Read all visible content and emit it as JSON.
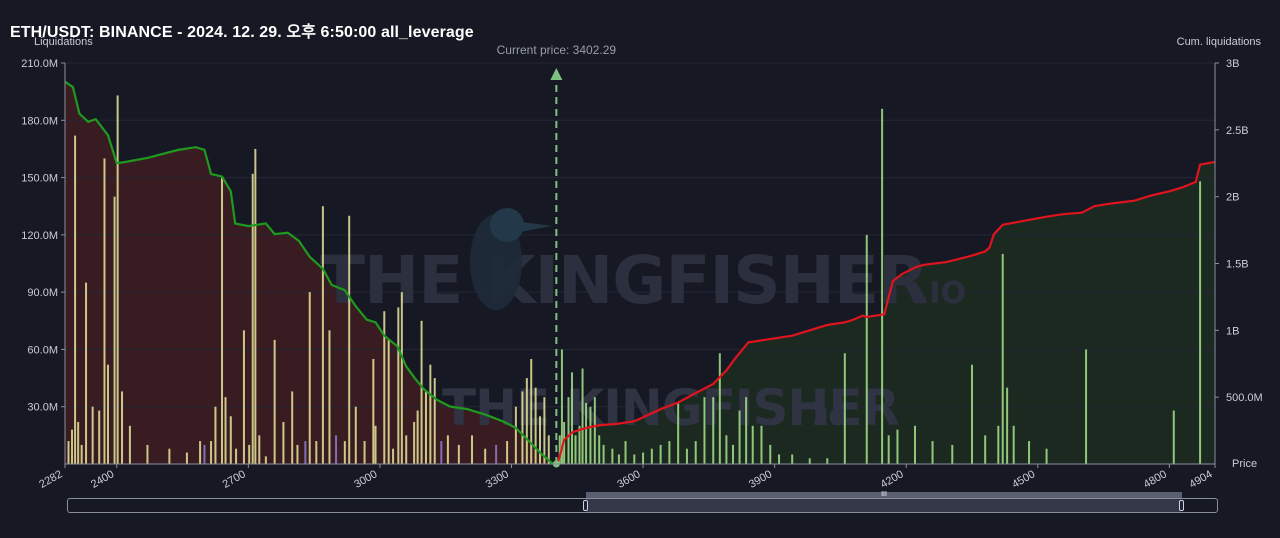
{
  "title": "ETH/USDT: BINANCE - 2024. 12. 29. 오후 6:50:00 all_leverage",
  "left_axis_label": "Liquidations",
  "right_axis_label": "Cum. liquidations",
  "x_axis_label": "Price",
  "current_price_label": "Current price: 3402.29",
  "watermark": {
    "brand": "THE KINGFISHER",
    "suffix": ".IO"
  },
  "slider": {
    "grip_label": "III"
  },
  "colors": {
    "background": "#161823",
    "short_cum_line": "#1f9a1f",
    "long_cum_line": "#e0141e",
    "left_fill": "#3a1c22",
    "right_fill": "#1b2a22",
    "bar_yellow": "#e8e59a",
    "bar_green": "#a6e38a",
    "bar_purple": "#8c7fd0",
    "current_price_line": "#7fbf7f"
  },
  "chart_data": {
    "type": "bar+area",
    "x_range": [
      2282,
      4904
    ],
    "current_price": 3402.29,
    "x_ticks": [
      2282,
      2400,
      2700,
      3000,
      3300,
      3600,
      3900,
      4200,
      4500,
      4800,
      4904
    ],
    "left_axis": {
      "unit": "M",
      "range": [
        0,
        210
      ],
      "ticks": [
        "210.0M",
        "180.0M",
        "150.0M",
        "120.0M",
        "90.0M",
        "60.0M",
        "30.0M"
      ],
      "tick_values": [
        210,
        180,
        150,
        120,
        90,
        60,
        30
      ]
    },
    "right_axis": {
      "range": [
        0,
        3000
      ],
      "ticks": [
        "3B",
        "2.5B",
        "2B",
        "1.5B",
        "1B",
        "500.0M"
      ],
      "tick_values": [
        3000,
        2500,
        2000,
        1500,
        1000,
        500
      ]
    },
    "series": [
      {
        "side": "short",
        "note_unit": "cumulative, millions",
        "points": [
          [
            2282,
            2860
          ],
          [
            2300,
            2820
          ],
          [
            2315,
            2620
          ],
          [
            2335,
            2560
          ],
          [
            2352,
            2580
          ],
          [
            2380,
            2460
          ],
          [
            2400,
            2250
          ],
          [
            2420,
            2260
          ],
          [
            2470,
            2290
          ],
          [
            2540,
            2350
          ],
          [
            2580,
            2370
          ],
          [
            2600,
            2350
          ],
          [
            2615,
            2170
          ],
          [
            2640,
            2150
          ],
          [
            2660,
            2040
          ],
          [
            2670,
            1800
          ],
          [
            2700,
            1780
          ],
          [
            2740,
            1800
          ],
          [
            2760,
            1720
          ],
          [
            2790,
            1730
          ],
          [
            2815,
            1670
          ],
          [
            2840,
            1550
          ],
          [
            2870,
            1460
          ],
          [
            2890,
            1340
          ],
          [
            2920,
            1300
          ],
          [
            2945,
            1180
          ],
          [
            2970,
            1080
          ],
          [
            2990,
            1060
          ],
          [
            3010,
            960
          ],
          [
            3040,
            880
          ],
          [
            3060,
            730
          ],
          [
            3080,
            640
          ],
          [
            3100,
            560
          ],
          [
            3130,
            480
          ],
          [
            3160,
            430
          ],
          [
            3200,
            410
          ],
          [
            3240,
            370
          ],
          [
            3280,
            320
          ],
          [
            3310,
            270
          ],
          [
            3340,
            170
          ],
          [
            3370,
            70
          ],
          [
            3395,
            0
          ]
        ]
      },
      {
        "side": "long",
        "note_unit": "cumulative, millions",
        "points": [
          [
            3405,
            0
          ],
          [
            3420,
            180
          ],
          [
            3440,
            240
          ],
          [
            3470,
            270
          ],
          [
            3500,
            290
          ],
          [
            3540,
            300
          ],
          [
            3580,
            320
          ],
          [
            3600,
            350
          ],
          [
            3640,
            410
          ],
          [
            3680,
            460
          ],
          [
            3720,
            530
          ],
          [
            3760,
            600
          ],
          [
            3790,
            700
          ],
          [
            3810,
            790
          ],
          [
            3840,
            910
          ],
          [
            3880,
            930
          ],
          [
            3940,
            960
          ],
          [
            3980,
            1000
          ],
          [
            4020,
            1040
          ],
          [
            4060,
            1060
          ],
          [
            4080,
            1080
          ],
          [
            4100,
            1110
          ],
          [
            4110,
            1100
          ],
          [
            4150,
            1120
          ],
          [
            4160,
            1250
          ],
          [
            4170,
            1370
          ],
          [
            4190,
            1420
          ],
          [
            4220,
            1470
          ],
          [
            4240,
            1490
          ],
          [
            4290,
            1510
          ],
          [
            4340,
            1550
          ],
          [
            4360,
            1570
          ],
          [
            4380,
            1590
          ],
          [
            4390,
            1620
          ],
          [
            4400,
            1720
          ],
          [
            4420,
            1790
          ],
          [
            4470,
            1820
          ],
          [
            4520,
            1850
          ],
          [
            4560,
            1870
          ],
          [
            4600,
            1880
          ],
          [
            4630,
            1930
          ],
          [
            4670,
            1950
          ],
          [
            4720,
            1970
          ],
          [
            4760,
            2010
          ],
          [
            4800,
            2040
          ],
          [
            4830,
            2070
          ],
          [
            4860,
            2110
          ],
          [
            4870,
            2240
          ],
          [
            4904,
            2260
          ]
        ]
      }
    ],
    "bars": [
      {
        "x": 2290,
        "v": 12,
        "c": "y"
      },
      {
        "x": 2298,
        "v": 18,
        "c": "y"
      },
      {
        "x": 2305,
        "v": 172,
        "c": "y"
      },
      {
        "x": 2312,
        "v": 22,
        "c": "y"
      },
      {
        "x": 2320,
        "v": 10,
        "c": "y"
      },
      {
        "x": 2330,
        "v": 95,
        "c": "y"
      },
      {
        "x": 2345,
        "v": 30,
        "c": "y"
      },
      {
        "x": 2360,
        "v": 28,
        "c": "y"
      },
      {
        "x": 2372,
        "v": 160,
        "c": "y"
      },
      {
        "x": 2380,
        "v": 52,
        "c": "y"
      },
      {
        "x": 2395,
        "v": 140,
        "c": "y"
      },
      {
        "x": 2402,
        "v": 193,
        "c": "y"
      },
      {
        "x": 2412,
        "v": 38,
        "c": "y"
      },
      {
        "x": 2430,
        "v": 20,
        "c": "y"
      },
      {
        "x": 2470,
        "v": 10,
        "c": "y"
      },
      {
        "x": 2520,
        "v": 8,
        "c": "y"
      },
      {
        "x": 2560,
        "v": 6,
        "c": "y"
      },
      {
        "x": 2590,
        "v": 12,
        "c": "y"
      },
      {
        "x": 2600,
        "v": 10,
        "c": "p"
      },
      {
        "x": 2615,
        "v": 12,
        "c": "y"
      },
      {
        "x": 2625,
        "v": 30,
        "c": "y"
      },
      {
        "x": 2640,
        "v": 150,
        "c": "y"
      },
      {
        "x": 2648,
        "v": 35,
        "c": "y"
      },
      {
        "x": 2660,
        "v": 25,
        "c": "y"
      },
      {
        "x": 2672,
        "v": 8,
        "c": "y"
      },
      {
        "x": 2690,
        "v": 70,
        "c": "y"
      },
      {
        "x": 2702,
        "v": 10,
        "c": "y"
      },
      {
        "x": 2710,
        "v": 152,
        "c": "y"
      },
      {
        "x": 2716,
        "v": 165,
        "c": "y"
      },
      {
        "x": 2725,
        "v": 15,
        "c": "y"
      },
      {
        "x": 2740,
        "v": 4,
        "c": "y"
      },
      {
        "x": 2760,
        "v": 65,
        "c": "y"
      },
      {
        "x": 2780,
        "v": 22,
        "c": "y"
      },
      {
        "x": 2800,
        "v": 38,
        "c": "y"
      },
      {
        "x": 2812,
        "v": 10,
        "c": "y"
      },
      {
        "x": 2830,
        "v": 12,
        "c": "p"
      },
      {
        "x": 2840,
        "v": 90,
        "c": "y"
      },
      {
        "x": 2855,
        "v": 12,
        "c": "y"
      },
      {
        "x": 2870,
        "v": 135,
        "c": "y"
      },
      {
        "x": 2885,
        "v": 70,
        "c": "y"
      },
      {
        "x": 2900,
        "v": 15,
        "c": "p"
      },
      {
        "x": 2920,
        "v": 12,
        "c": "y"
      },
      {
        "x": 2930,
        "v": 130,
        "c": "y"
      },
      {
        "x": 2945,
        "v": 30,
        "c": "y"
      },
      {
        "x": 2965,
        "v": 12,
        "c": "y"
      },
      {
        "x": 2985,
        "v": 55,
        "c": "y"
      },
      {
        "x": 2990,
        "v": 20,
        "c": "y"
      },
      {
        "x": 3010,
        "v": 80,
        "c": "y"
      },
      {
        "x": 3020,
        "v": 65,
        "c": "y"
      },
      {
        "x": 3030,
        "v": 8,
        "c": "y"
      },
      {
        "x": 3042,
        "v": 82,
        "c": "y"
      },
      {
        "x": 3050,
        "v": 90,
        "c": "y"
      },
      {
        "x": 3060,
        "v": 15,
        "c": "y"
      },
      {
        "x": 3078,
        "v": 22,
        "c": "y"
      },
      {
        "x": 3086,
        "v": 28,
        "c": "y"
      },
      {
        "x": 3095,
        "v": 75,
        "c": "y"
      },
      {
        "x": 3105,
        "v": 38,
        "c": "y"
      },
      {
        "x": 3115,
        "v": 52,
        "c": "y"
      },
      {
        "x": 3125,
        "v": 45,
        "c": "y"
      },
      {
        "x": 3140,
        "v": 12,
        "c": "p"
      },
      {
        "x": 3155,
        "v": 15,
        "c": "y"
      },
      {
        "x": 3180,
        "v": 10,
        "c": "y"
      },
      {
        "x": 3210,
        "v": 15,
        "c": "y"
      },
      {
        "x": 3240,
        "v": 8,
        "c": "y"
      },
      {
        "x": 3265,
        "v": 10,
        "c": "p"
      },
      {
        "x": 3290,
        "v": 12,
        "c": "y"
      },
      {
        "x": 3310,
        "v": 30,
        "c": "y"
      },
      {
        "x": 3325,
        "v": 38,
        "c": "y"
      },
      {
        "x": 3335,
        "v": 45,
        "c": "y"
      },
      {
        "x": 3345,
        "v": 55,
        "c": "y"
      },
      {
        "x": 3355,
        "v": 40,
        "c": "y"
      },
      {
        "x": 3365,
        "v": 25,
        "c": "y"
      },
      {
        "x": 3375,
        "v": 35,
        "c": "y"
      },
      {
        "x": 3385,
        "v": 15,
        "c": "y"
      },
      {
        "x": 3410,
        "v": 15,
        "c": "g"
      },
      {
        "x": 3415,
        "v": 60,
        "c": "g"
      },
      {
        "x": 3420,
        "v": 22,
        "c": "g"
      },
      {
        "x": 3430,
        "v": 35,
        "c": "g"
      },
      {
        "x": 3438,
        "v": 48,
        "c": "g"
      },
      {
        "x": 3446,
        "v": 15,
        "c": "g"
      },
      {
        "x": 3455,
        "v": 20,
        "c": "g"
      },
      {
        "x": 3462,
        "v": 50,
        "c": "g"
      },
      {
        "x": 3470,
        "v": 32,
        "c": "g"
      },
      {
        "x": 3480,
        "v": 30,
        "c": "g"
      },
      {
        "x": 3490,
        "v": 35,
        "c": "g"
      },
      {
        "x": 3500,
        "v": 15,
        "c": "g"
      },
      {
        "x": 3510,
        "v": 10,
        "c": "g"
      },
      {
        "x": 3530,
        "v": 8,
        "c": "g"
      },
      {
        "x": 3545,
        "v": 5,
        "c": "g"
      },
      {
        "x": 3560,
        "v": 12,
        "c": "g"
      },
      {
        "x": 3580,
        "v": 5,
        "c": "g"
      },
      {
        "x": 3600,
        "v": 6,
        "c": "g"
      },
      {
        "x": 3620,
        "v": 8,
        "c": "g"
      },
      {
        "x": 3640,
        "v": 10,
        "c": "g"
      },
      {
        "x": 3660,
        "v": 12,
        "c": "g"
      },
      {
        "x": 3680,
        "v": 32,
        "c": "g"
      },
      {
        "x": 3700,
        "v": 8,
        "c": "g"
      },
      {
        "x": 3720,
        "v": 12,
        "c": "g"
      },
      {
        "x": 3740,
        "v": 35,
        "c": "g"
      },
      {
        "x": 3760,
        "v": 35,
        "c": "g"
      },
      {
        "x": 3775,
        "v": 58,
        "c": "g"
      },
      {
        "x": 3790,
        "v": 15,
        "c": "g"
      },
      {
        "x": 3805,
        "v": 10,
        "c": "g"
      },
      {
        "x": 3820,
        "v": 28,
        "c": "g"
      },
      {
        "x": 3835,
        "v": 35,
        "c": "g"
      },
      {
        "x": 3850,
        "v": 20,
        "c": "g"
      },
      {
        "x": 3870,
        "v": 20,
        "c": "g"
      },
      {
        "x": 3890,
        "v": 10,
        "c": "g"
      },
      {
        "x": 3910,
        "v": 5,
        "c": "g"
      },
      {
        "x": 3940,
        "v": 5,
        "c": "g"
      },
      {
        "x": 3980,
        "v": 3,
        "c": "g"
      },
      {
        "x": 4020,
        "v": 3,
        "c": "g"
      },
      {
        "x": 4060,
        "v": 58,
        "c": "g"
      },
      {
        "x": 4110,
        "v": 120,
        "c": "g"
      },
      {
        "x": 4145,
        "v": 186,
        "c": "g"
      },
      {
        "x": 4160,
        "v": 15,
        "c": "g"
      },
      {
        "x": 4180,
        "v": 18,
        "c": "g"
      },
      {
        "x": 4220,
        "v": 20,
        "c": "g"
      },
      {
        "x": 4260,
        "v": 12,
        "c": "g"
      },
      {
        "x": 4305,
        "v": 10,
        "c": "g"
      },
      {
        "x": 4350,
        "v": 52,
        "c": "g"
      },
      {
        "x": 4380,
        "v": 15,
        "c": "g"
      },
      {
        "x": 4410,
        "v": 20,
        "c": "g"
      },
      {
        "x": 4420,
        "v": 110,
        "c": "g"
      },
      {
        "x": 4430,
        "v": 40,
        "c": "g"
      },
      {
        "x": 4445,
        "v": 20,
        "c": "g"
      },
      {
        "x": 4480,
        "v": 12,
        "c": "g"
      },
      {
        "x": 4520,
        "v": 8,
        "c": "g"
      },
      {
        "x": 4610,
        "v": 60,
        "c": "g"
      },
      {
        "x": 4810,
        "v": 28,
        "c": "g"
      },
      {
        "x": 4870,
        "v": 148,
        "c": "g"
      }
    ]
  }
}
